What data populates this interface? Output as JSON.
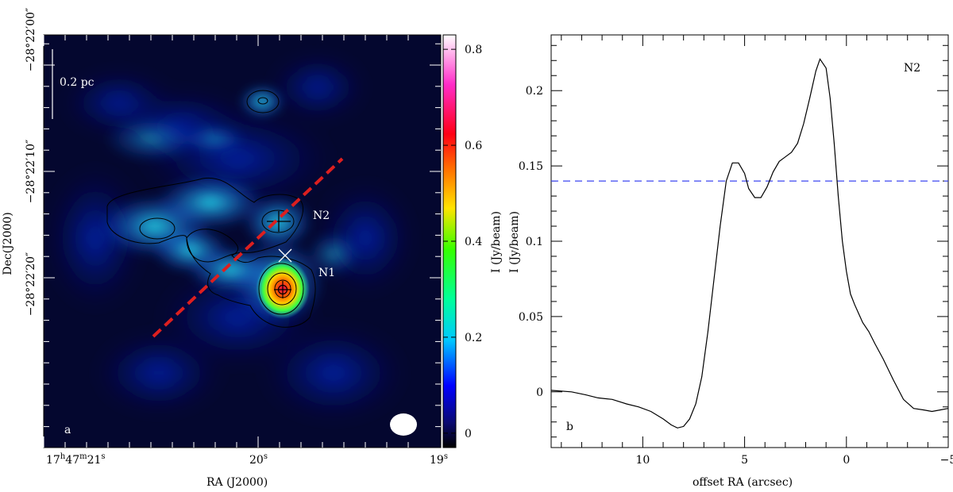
{
  "chart_data": [
    {
      "type": "heatmap",
      "panel_label": "a",
      "xlabel": "RA (J2000)",
      "ylabel": "Dec(J2000)",
      "x_ticks": [
        {
          "h": "17",
          "m": "47",
          "s": "21",
          "ra_s": 21
        },
        {
          "h": "",
          "m": "",
          "s": "20",
          "ra_s": 20
        },
        {
          "h": "",
          "m": "",
          "s": "19",
          "ra_s": 19
        }
      ],
      "y_ticks": [
        {
          "text": "−28°22′00″",
          "dec": 0
        },
        {
          "text": "−28°22′10″",
          "dec": 10
        },
        {
          "text": "−28°22′20″",
          "dec": 20
        }
      ],
      "colorbar": {
        "label": "I (Jy/beam)",
        "range": [
          -0.03,
          0.83
        ],
        "ticks": [
          {
            "value": 0,
            "text": "0"
          },
          {
            "value": 0.2,
            "text": "0.2"
          },
          {
            "value": 0.4,
            "text": "0.4"
          },
          {
            "value": 0.6,
            "text": "0.6"
          },
          {
            "value": 0.8,
            "text": "0.8"
          }
        ]
      },
      "scale_bar": "0.2 pc",
      "sources": [
        {
          "name": "N2",
          "marker": "plus"
        },
        {
          "name": "N1",
          "marker": "circle-plus"
        },
        {
          "name": "",
          "marker": "x"
        }
      ],
      "cut_line": {
        "color": "#dd1f1f",
        "style": "dashed"
      }
    },
    {
      "type": "line",
      "panel_label": "b",
      "title": "N2",
      "xlabel": "offset RA (arcsec)",
      "ylabel": "I (Jy/beam)",
      "xlim": [
        14.5,
        -5
      ],
      "ylim": [
        -0.037,
        0.237
      ],
      "x_ticks": [
        {
          "value": 10,
          "text": "10"
        },
        {
          "value": 5,
          "text": "5"
        },
        {
          "value": 0,
          "text": "0"
        },
        {
          "value": -5,
          "text": "−5"
        }
      ],
      "y_ticks": [
        {
          "value": 0,
          "text": "0"
        },
        {
          "value": 0.05,
          "text": "0.05"
        },
        {
          "value": 0.1,
          "text": "0.1"
        },
        {
          "value": 0.15,
          "text": "0.15"
        },
        {
          "value": 0.2,
          "text": "0.2"
        }
      ],
      "threshold": {
        "value": 0.14,
        "color": "#3b45f0"
      },
      "x": [
        14.5,
        13.5,
        12.8,
        12.2,
        11.5,
        10.8,
        10.2,
        9.6,
        9.0,
        8.6,
        8.3,
        8.0,
        7.7,
        7.4,
        7.1,
        6.8,
        6.5,
        6.2,
        5.9,
        5.6,
        5.3,
        5.0,
        4.8,
        4.5,
        4.2,
        3.9,
        3.6,
        3.3,
        3.0,
        2.7,
        2.4,
        2.1,
        1.8,
        1.5,
        1.3,
        1.0,
        0.8,
        0.6,
        0.4,
        0.2,
        0.0,
        -0.2,
        -0.4,
        -0.6,
        -0.8,
        -1.1,
        -1.4,
        -1.8,
        -2.3,
        -2.8,
        -3.3,
        -3.8,
        -4.2,
        -4.6,
        -5.0
      ],
      "values": [
        0.001,
        0.0,
        -0.002,
        -0.004,
        -0.005,
        -0.008,
        -0.01,
        -0.013,
        -0.018,
        -0.022,
        -0.024,
        -0.023,
        -0.018,
        -0.008,
        0.01,
        0.04,
        0.075,
        0.11,
        0.14,
        0.152,
        0.152,
        0.145,
        0.135,
        0.129,
        0.129,
        0.136,
        0.146,
        0.153,
        0.156,
        0.159,
        0.165,
        0.178,
        0.195,
        0.213,
        0.221,
        0.215,
        0.195,
        0.165,
        0.13,
        0.1,
        0.08,
        0.065,
        0.058,
        0.052,
        0.046,
        0.04,
        0.032,
        0.022,
        0.008,
        -0.005,
        -0.011,
        -0.012,
        -0.013,
        -0.012,
        -0.011
      ]
    }
  ]
}
